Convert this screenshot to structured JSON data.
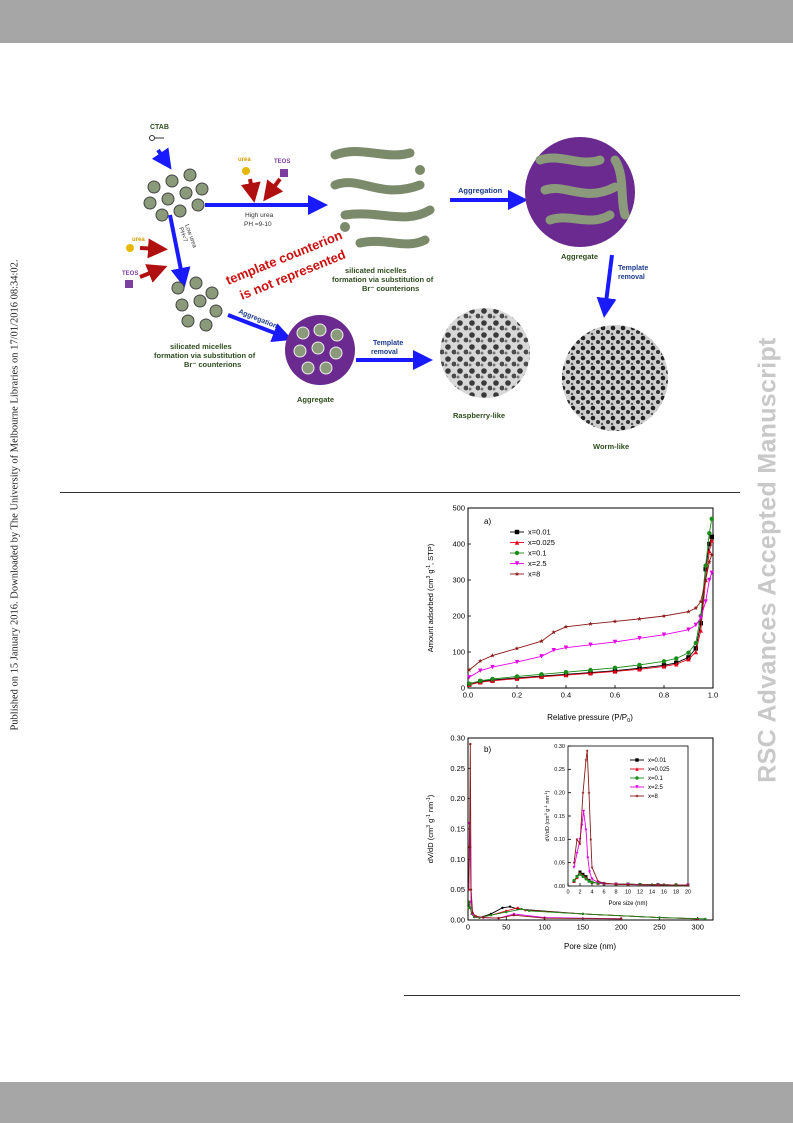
{
  "sidebar_text": "Published on 15 January 2016. Downloaded by The University of Melbourne Libraries on 17/01/2016 08:34:02.",
  "watermark": "RSC Advances Accepted Manuscript",
  "scheme": {
    "ctab": "CTAB",
    "urea_top": "urea",
    "teos_top": "TEOS",
    "high_urea": "High urea",
    "ph_high": "PH =9-10",
    "low_urea": "Low urea",
    "ph_low": "PH=7",
    "urea_left": "urea",
    "teos_left": "TEOS",
    "diag_line1": "template counterion",
    "diag_line2": "is not represented",
    "silicated_top_l1": "silicated micelles",
    "silicated_top_l2": "formation via substitution of",
    "silicated_top_l3": "Br⁻ counterions",
    "aggregation_top": "Aggregation",
    "aggregate_top": "Aggregate",
    "template_removal_right_l1": "Template",
    "template_removal_right_l2": "removal",
    "silicated_bottom_l1": "silicated micelles",
    "silicated_bottom_l2": "formation via substitution of",
    "silicated_bottom_l3": "Br⁻ counterions",
    "aggregation_bottom": "Aggregation",
    "aggregate_bottom": "Aggregate",
    "template_removal_mid_l1": "Template",
    "template_removal_mid_l2": "removal",
    "raspberry": "Raspberry-like",
    "worm": "Worm-like",
    "colors": {
      "arrow_blue": "#1a1aff",
      "arrow_red": "#b01010",
      "aggregate_purple": "#6b2a8f",
      "label_green": "#2e4d1e",
      "urea_yellow": "#e6b800",
      "teos_purple": "#7b3fa0"
    }
  },
  "chart_data": [
    {
      "type": "line",
      "panel_label": "a)",
      "xlabel": "Relative pressure (P/P",
      "xlabel_sub": "0",
      "xlabel_end": ")",
      "ylabel": "Amount adsorbed (cm",
      "ylabel_sup1": "3",
      "ylabel_mid": " g",
      "ylabel_sup2": "-1",
      "ylabel_end": ", STP)",
      "xlim": [
        0,
        1.0
      ],
      "ylim": [
        0,
        500
      ],
      "xticks": [
        "0.0",
        "0.2",
        "0.4",
        "0.6",
        "0.8",
        "1.0"
      ],
      "yticks": [
        "0",
        "100",
        "200",
        "300",
        "400",
        "500"
      ],
      "legend_position": "top-left",
      "series": [
        {
          "name": "x=0.01",
          "color": "#000000",
          "marker": "square",
          "x": [
            0.005,
            0.05,
            0.1,
            0.2,
            0.3,
            0.4,
            0.5,
            0.6,
            0.7,
            0.8,
            0.85,
            0.9,
            0.93,
            0.95,
            0.97,
            0.985,
            0.995
          ],
          "y": [
            10,
            18,
            22,
            28,
            33,
            38,
            43,
            48,
            55,
            63,
            70,
            85,
            110,
            180,
            330,
            400,
            420
          ]
        },
        {
          "name": "x=0.025",
          "color": "#e8001a",
          "marker": "triangle",
          "x": [
            0.005,
            0.05,
            0.1,
            0.2,
            0.3,
            0.4,
            0.5,
            0.6,
            0.7,
            0.8,
            0.85,
            0.9,
            0.93,
            0.95,
            0.97,
            0.985,
            0.995
          ],
          "y": [
            9,
            16,
            20,
            26,
            31,
            36,
            41,
            46,
            52,
            60,
            66,
            80,
            100,
            160,
            300,
            380,
            410
          ]
        },
        {
          "name": "x=0.1",
          "color": "#1a8c1a",
          "marker": "circle",
          "x": [
            0.005,
            0.05,
            0.1,
            0.2,
            0.3,
            0.4,
            0.5,
            0.6,
            0.7,
            0.8,
            0.85,
            0.9,
            0.93,
            0.95,
            0.97,
            0.985,
            0.995
          ],
          "y": [
            12,
            20,
            25,
            32,
            38,
            44,
            50,
            56,
            64,
            74,
            82,
            98,
            125,
            200,
            340,
            430,
            470
          ]
        },
        {
          "name": "x=2.5",
          "color": "#e600e6",
          "marker": "triangle-down",
          "x": [
            0.005,
            0.05,
            0.1,
            0.2,
            0.3,
            0.35,
            0.4,
            0.5,
            0.6,
            0.7,
            0.8,
            0.9,
            0.93,
            0.95,
            0.97,
            0.985,
            0.995
          ],
          "y": [
            30,
            48,
            58,
            72,
            88,
            105,
            112,
            120,
            128,
            138,
            148,
            162,
            175,
            195,
            240,
            300,
            320
          ]
        },
        {
          "name": "x=8",
          "color": "#8b1a1a",
          "marker": "star",
          "x": [
            0.005,
            0.05,
            0.1,
            0.2,
            0.3,
            0.35,
            0.4,
            0.5,
            0.6,
            0.7,
            0.8,
            0.9,
            0.93,
            0.95,
            0.97,
            0.985,
            0.995
          ],
          "y": [
            50,
            75,
            90,
            110,
            130,
            155,
            170,
            178,
            185,
            192,
            200,
            212,
            222,
            240,
            300,
            350,
            370
          ]
        }
      ]
    },
    {
      "type": "line",
      "panel_label": "b)",
      "xlabel": "Pore size (nm)",
      "ylabel": "dV/dD (cm",
      "ylabel_sup1": "3",
      "ylabel_mid": " g",
      "ylabel_sup2": "-1",
      "ylabel_mid2": " nm",
      "ylabel_sup3": "-1",
      "ylabel_end": ")",
      "xlim": [
        0,
        320
      ],
      "ylim": [
        0,
        0.3
      ],
      "xticks": [
        "0",
        "50",
        "100",
        "150",
        "200",
        "250",
        "300"
      ],
      "yticks": [
        "0.00",
        "0.05",
        "0.10",
        "0.15",
        "0.20",
        "0.25",
        "0.30"
      ],
      "series": [
        {
          "name": "x=0.01",
          "color": "#000000",
          "x": [
            1,
            2,
            3,
            5,
            8,
            15,
            30,
            45,
            55,
            65,
            150,
            250,
            300
          ],
          "y": [
            0.02,
            0.03,
            0.02,
            0.01,
            0.005,
            0.004,
            0.01,
            0.02,
            0.022,
            0.018,
            0.01,
            0.004,
            0.002
          ]
        },
        {
          "name": "x=0.025",
          "color": "#e8001a",
          "x": [
            1,
            2,
            3,
            5,
            8,
            15,
            30,
            50,
            65,
            75,
            150,
            250,
            300
          ],
          "y": [
            0.02,
            0.03,
            0.02,
            0.01,
            0.005,
            0.004,
            0.008,
            0.015,
            0.02,
            0.016,
            0.01,
            0.004,
            0.002
          ]
        },
        {
          "name": "x=0.1",
          "color": "#1a8c1a",
          "x": [
            1,
            2,
            3,
            5,
            8,
            15,
            30,
            50,
            70,
            80,
            150,
            250,
            310
          ],
          "y": [
            0.02,
            0.03,
            0.02,
            0.01,
            0.005,
            0.004,
            0.008,
            0.013,
            0.018,
            0.015,
            0.01,
            0.004,
            0.002
          ]
        },
        {
          "name": "x=2.5",
          "color": "#e600e6",
          "x": [
            1,
            2,
            3,
            4,
            6,
            10,
            20,
            40,
            60,
            100,
            200
          ],
          "y": [
            0.05,
            0.16,
            0.12,
            0.03,
            0.01,
            0.006,
            0.004,
            0.003,
            0.01,
            0.004,
            0.002
          ]
        },
        {
          "name": "x=8",
          "color": "#8b1a1a",
          "x": [
            1,
            2,
            3,
            4,
            6,
            10,
            20,
            40,
            60,
            100,
            200
          ],
          "y": [
            0.05,
            0.12,
            0.29,
            0.05,
            0.012,
            0.006,
            0.004,
            0.003,
            0.008,
            0.003,
            0.002
          ]
        }
      ],
      "inset": {
        "xlabel": "Pore size (nm)",
        "ylabel": "dV/dD (cm",
        "ylabel_sup1": "3",
        "ylabel_mid": " g",
        "ylabel_sup2": "-1",
        "ylabel_mid2": " nm",
        "ylabel_sup3": "-1",
        "ylabel_end": ")",
        "xlim": [
          0,
          20
        ],
        "ylim": [
          0,
          0.3
        ],
        "xticks": [
          "0",
          "2",
          "4",
          "6",
          "8",
          "10",
          "12",
          "14",
          "16",
          "18",
          "20"
        ],
        "yticks": [
          "0.00",
          "0.05",
          "0.10",
          "0.15",
          "0.20",
          "0.25",
          "0.30"
        ],
        "legend_position": "top-right",
        "series": [
          {
            "name": "x=0.01",
            "color": "#000000",
            "marker": "square",
            "x": [
              1,
              1.5,
              2,
              2.5,
              3,
              3.5,
              4,
              5,
              6,
              8,
              10,
              12,
              15,
              18,
              20
            ],
            "y": [
              0.01,
              0.02,
              0.03,
              0.025,
              0.02,
              0.012,
              0.008,
              0.006,
              0.005,
              0.004,
              0.004,
              0.003,
              0.003,
              0.002,
              0.002
            ]
          },
          {
            "name": "x=0.025",
            "color": "#e8001a",
            "marker": "triangle",
            "x": [
              1,
              1.5,
              2,
              2.5,
              3,
              3.5,
              4,
              5,
              6,
              8,
              10,
              12,
              15,
              18,
              20
            ],
            "y": [
              0.01,
              0.018,
              0.028,
              0.022,
              0.018,
              0.011,
              0.008,
              0.006,
              0.005,
              0.004,
              0.004,
              0.003,
              0.003,
              0.002,
              0.002
            ]
          },
          {
            "name": "x=0.1",
            "color": "#1a8c1a",
            "marker": "circle",
            "x": [
              1,
              1.5,
              2,
              2.5,
              3,
              3.5,
              4,
              5,
              6,
              8,
              10,
              12,
              15,
              18,
              20
            ],
            "y": [
              0.012,
              0.02,
              0.025,
              0.02,
              0.015,
              0.01,
              0.008,
              0.006,
              0.005,
              0.004,
              0.004,
              0.003,
              0.003,
              0.002,
              0.002
            ]
          },
          {
            "name": "x=2.5",
            "color": "#e600e6",
            "marker": "triangle-down",
            "x": [
              1,
              1.5,
              2,
              2.3,
              2.6,
              3,
              3.3,
              3.6,
              4,
              5,
              6,
              8,
              10,
              15,
              20
            ],
            "y": [
              0.04,
              0.07,
              0.1,
              0.13,
              0.16,
              0.12,
              0.06,
              0.03,
              0.015,
              0.008,
              0.005,
              0.004,
              0.003,
              0.002,
              0.002
            ]
          },
          {
            "name": "x=8",
            "color": "#8b1a1a",
            "marker": "star",
            "x": [
              1,
              1.5,
              2,
              2.5,
              3,
              3.2,
              3.5,
              3.8,
              4,
              5,
              6,
              8,
              10,
              15,
              20
            ],
            "y": [
              0.05,
              0.1,
              0.09,
              0.2,
              0.27,
              0.29,
              0.2,
              0.1,
              0.04,
              0.01,
              0.006,
              0.004,
              0.003,
              0.002,
              0.002
            ]
          }
        ]
      }
    }
  ]
}
